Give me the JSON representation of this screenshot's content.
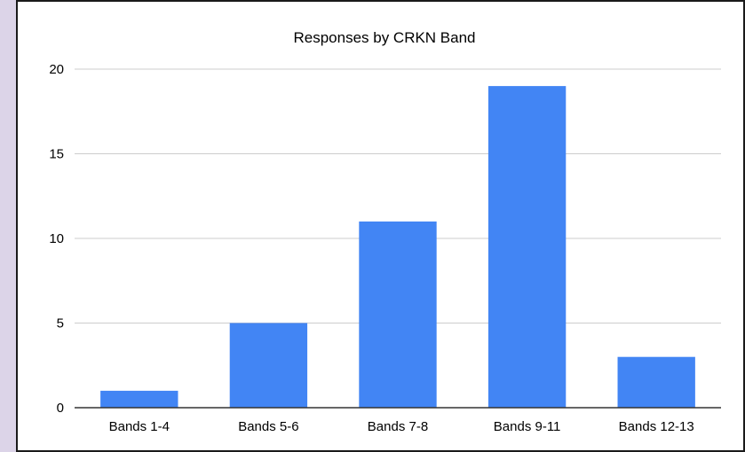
{
  "chart_data": {
    "type": "bar",
    "title": "Responses by CRKN Band",
    "categories": [
      "Bands 1-4",
      "Bands 5-6",
      "Bands 7-8",
      "Bands 9-11",
      "Bands 12-13"
    ],
    "values": [
      1,
      5,
      11,
      19,
      3
    ],
    "ylim": [
      0,
      20
    ],
    "yticks": [
      0,
      5,
      10,
      15,
      20
    ],
    "xlabel": "",
    "ylabel": "",
    "grid": true,
    "legend": "none",
    "bar_color": "#4285f4"
  }
}
